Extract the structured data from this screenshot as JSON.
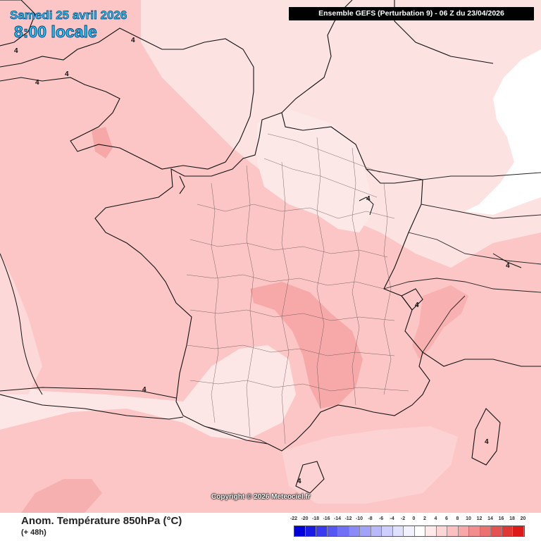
{
  "header": {
    "date": "Samedi 25 avril 2026",
    "time": "8:00 locale",
    "run": "Ensemble GEFS  (Perturbation 9)  -  06 Z du 23/04/2026"
  },
  "map": {
    "region": "France",
    "contour_label": "4",
    "copyright": "Copyright © 2026 Meteociel.fr"
  },
  "footer": {
    "parameter": "Anom. Température 850hPa (°C)",
    "lead_time": "(+ 48h)"
  },
  "scale": {
    "labels": [
      "-22",
      "-20",
      "-18",
      "-16",
      "-14",
      "-12",
      "-10",
      "-8",
      "-6",
      "-4",
      "-2",
      "0",
      "2",
      "4",
      "6",
      "8",
      "10",
      "12",
      "14",
      "16",
      "18",
      "20"
    ],
    "colors": [
      "#0000d8",
      "#1a1ae6",
      "#3a3af0",
      "#5656f4",
      "#7070f6",
      "#8a8af8",
      "#a2a2fa",
      "#b8b8fb",
      "#ceceff",
      "#e0e0ff",
      "#f2f2ff",
      "#ffffff",
      "#ffeaea",
      "#ffd6d6",
      "#fcc0c0",
      "#f8a8a8",
      "#f28e8e",
      "#ec7272",
      "#e65252",
      "#e03636",
      "#dc1a1a"
    ]
  }
}
